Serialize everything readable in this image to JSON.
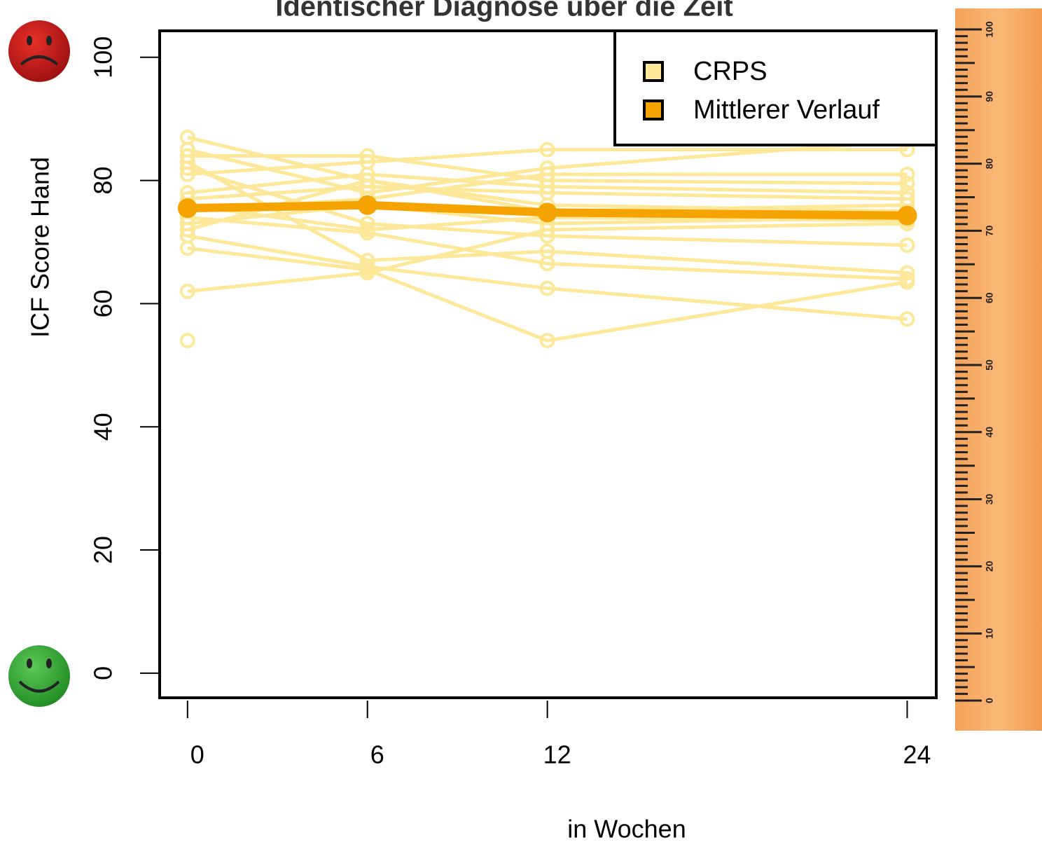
{
  "chart_data": {
    "type": "line",
    "title": "Identischer Diagnose über die Zeit",
    "xlabel": "in Wochen",
    "ylabel": "ICF Score Hand",
    "x": [
      0,
      6,
      12,
      24
    ],
    "xlim": [
      -0.93,
      24.97
    ],
    "xticks": [
      0,
      6,
      12,
      24
    ],
    "ylim": [
      -4,
      104.3
    ],
    "yticks": [
      0,
      20,
      40,
      60,
      80,
      100
    ],
    "legend_position": "top-right",
    "legend": [
      {
        "name": "CRPS",
        "color": "#fde89a"
      },
      {
        "name": "Mittlerer Verlauf",
        "color": "#f5a300"
      }
    ],
    "series": [
      {
        "name": "CRPS",
        "color": "#fde89a",
        "values": [
          87,
          80,
          76,
          75
        ]
      },
      {
        "name": "CRPS",
        "color": "#fde89a",
        "values": [
          85,
          78,
          82,
          86.5
        ]
      },
      {
        "name": "CRPS",
        "color": "#fde89a",
        "values": [
          84,
          84,
          80,
          79.5
        ]
      },
      {
        "name": "CRPS",
        "color": "#fde89a",
        "values": [
          83,
          67,
          68.5,
          65
        ]
      },
      {
        "name": "CRPS",
        "color": "#fde89a",
        "values": [
          82,
          73,
          71,
          69.5
        ]
      },
      {
        "name": "CRPS",
        "color": "#fde89a",
        "values": [
          81,
          83,
          85,
          85
        ]
      },
      {
        "name": "CRPS",
        "color": "#fde89a",
        "values": [
          78,
          81,
          79,
          78
        ]
      },
      {
        "name": "CRPS",
        "color": "#fde89a",
        "values": [
          77,
          79,
          78,
          77
        ]
      },
      {
        "name": "CRPS",
        "color": "#fde89a",
        "values": [
          76,
          72,
          74,
          73.5
        ]
      },
      {
        "name": "CRPS",
        "color": "#fde89a",
        "values": [
          75,
          77,
          81,
          81
        ]
      },
      {
        "name": "CRPS",
        "color": "#fde89a",
        "values": [
          74,
          71.5,
          66.5,
          64
        ]
      },
      {
        "name": "CRPS",
        "color": "#fde89a",
        "values": [
          73,
          76,
          73,
          74
        ]
      },
      {
        "name": "CRPS",
        "color": "#fde89a",
        "values": [
          72,
          80,
          75,
          76
        ]
      },
      {
        "name": "CRPS",
        "color": "#fde89a",
        "values": [
          71,
          66,
          62.5,
          57.5
        ]
      },
      {
        "name": "CRPS",
        "color": "#fde89a",
        "values": [
          69,
          65.5,
          54,
          63.5
        ]
      },
      {
        "name": "CRPS",
        "color": "#fde89a",
        "values": [
          62,
          65,
          72,
          73
        ]
      },
      {
        "name": "CRPS",
        "color": "#fde89a",
        "values": [
          54,
          null,
          null,
          null
        ]
      },
      {
        "name": "Mittlerer Verlauf",
        "color": "#f5a300",
        "values": [
          75.5,
          76,
          74.8,
          74.3
        ]
      }
    ],
    "ruler_ticks": [
      0,
      10,
      20,
      30,
      40,
      50,
      60,
      70,
      80,
      90,
      100
    ]
  }
}
